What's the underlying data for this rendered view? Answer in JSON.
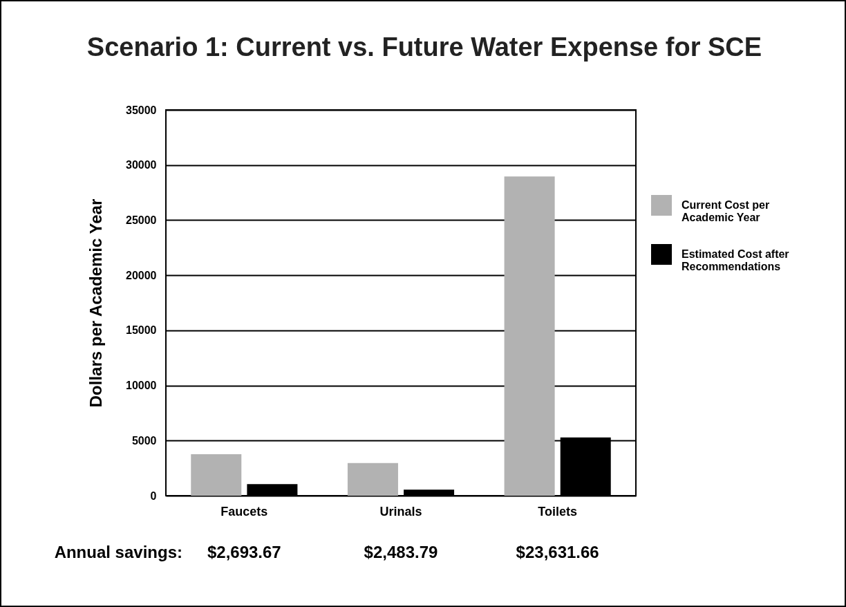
{
  "chart_data": {
    "type": "bar",
    "title": "Scenario 1: Current vs. Future Water Expense for SCE",
    "ylabel": "Dollars per Academic Year",
    "categories": [
      "Faucets",
      "Urinals",
      "Toilets"
    ],
    "series": [
      {
        "name": "Current Cost per Academic Year",
        "color": "#b2b2b2",
        "values": [
          3770,
          2970,
          28960
        ]
      },
      {
        "name": "Estimated Cost after Recommendations",
        "color": "#000000",
        "values": [
          1050,
          550,
          5280
        ]
      }
    ],
    "ylim": [
      0,
      35000
    ],
    "yticks": [
      0,
      5000,
      10000,
      15000,
      20000,
      25000,
      30000,
      35000
    ],
    "grid": "y",
    "legend": "right",
    "annotations": [
      "Annual savings:",
      "$2,693.67",
      "$2,483.79",
      "$23,631.66"
    ]
  }
}
